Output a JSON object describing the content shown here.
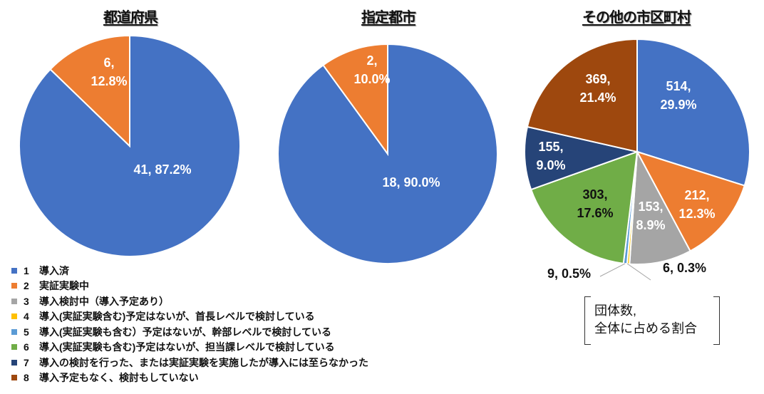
{
  "legend": {
    "items": [
      {
        "num": "1",
        "label": "導入済",
        "color": "#4472C4"
      },
      {
        "num": "2",
        "label": "実証実験中",
        "color": "#ED7D31"
      },
      {
        "num": "3",
        "label": "導入検討中（導入予定あり）",
        "color": "#A5A5A5"
      },
      {
        "num": "4",
        "label": "導入(実証実験含む)予定はないが、首長レベルで検討している",
        "color": "#FFC000"
      },
      {
        "num": "5",
        "label": "導入(実証実験も含む）予定はないが、幹部レベルで検討している",
        "color": "#5B9BD5"
      },
      {
        "num": "6",
        "label": "導入(実証実験も含む)予定はないが、担当課レベルで検討している",
        "color": "#70AD47"
      },
      {
        "num": "7",
        "label": "導入の検討を行った、または実証実験を実施したが導入には至らなかった",
        "color": "#264478"
      },
      {
        "num": "8",
        "label": "導入予定もなく、検討もしていない",
        "color": "#9E480E"
      }
    ]
  },
  "note": {
    "line1": "団体数,",
    "line2": "全体に占める割合"
  },
  "outside_labels": {
    "cat5": "9, 0.5%",
    "cat4": "6, 0.3%"
  },
  "chart_data": [
    {
      "type": "pie",
      "title": "都道府県",
      "categories": [
        "1 導入済",
        "2 実証実験中"
      ],
      "values": [
        41,
        6
      ],
      "percentages": [
        87.2,
        12.8
      ],
      "colors": [
        "#4472C4",
        "#ED7D31"
      ],
      "labels": [
        "41, 87.2%",
        "6,\n12.8%"
      ],
      "legend_position": "bottom-left"
    },
    {
      "type": "pie",
      "title": "指定都市",
      "categories": [
        "1 導入済",
        "2 実証実験中"
      ],
      "values": [
        18,
        2
      ],
      "percentages": [
        90.0,
        10.0
      ],
      "colors": [
        "#4472C4",
        "#ED7D31"
      ],
      "labels": [
        "18, 90.0%",
        "2,\n10.0%"
      ]
    },
    {
      "type": "pie",
      "title": "その他の市区町村",
      "categories": [
        "1 導入済",
        "2 実証実験中",
        "3 導入検討中（導入予定あり）",
        "4 首長レベルで検討",
        "5 幹部レベルで検討",
        "6 担当課レベルで検討",
        "7 導入には至らなかった",
        "8 導入予定もなく、検討もしていない"
      ],
      "values": [
        514,
        212,
        153,
        6,
        9,
        303,
        155,
        369
      ],
      "percentages": [
        29.9,
        12.3,
        8.9,
        0.3,
        0.5,
        17.6,
        9.0,
        21.4
      ],
      "colors": [
        "#4472C4",
        "#ED7D31",
        "#A5A5A5",
        "#FFC000",
        "#5B9BD5",
        "#70AD47",
        "#264478",
        "#9E480E"
      ],
      "labels": [
        "514,\n29.9%",
        "212,\n12.3%",
        "153,\n8.9%",
        "6, 0.3%",
        "9, 0.5%",
        "303,\n17.6%",
        "155,\n9.0%",
        "369,\n21.4%"
      ]
    }
  ]
}
